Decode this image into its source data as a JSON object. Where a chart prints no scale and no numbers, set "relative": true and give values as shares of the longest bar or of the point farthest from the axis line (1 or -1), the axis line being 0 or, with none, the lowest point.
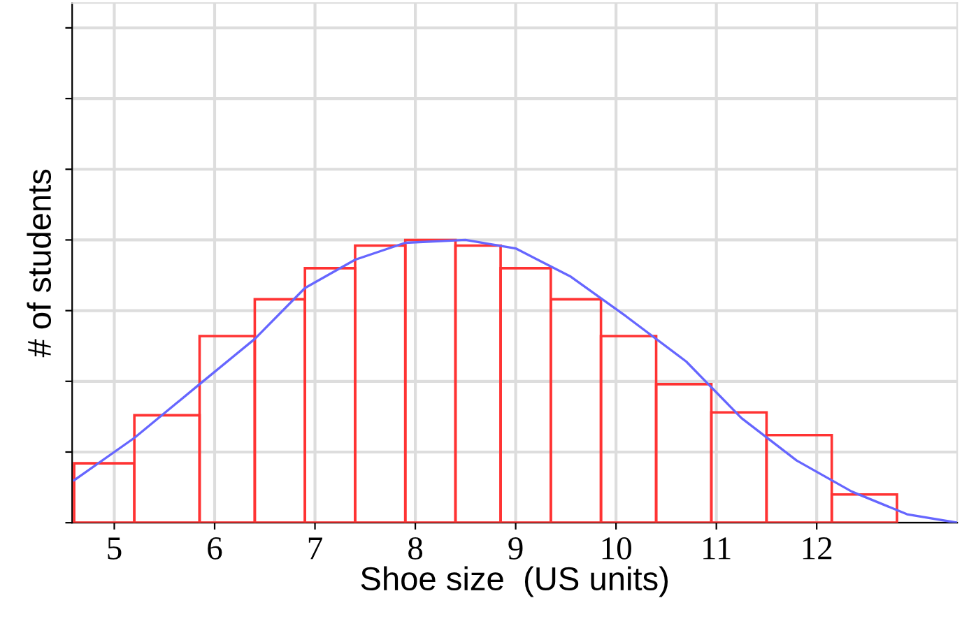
{
  "chart_data": {
    "type": "histogram",
    "xlabel": "Shoe size  (US units)",
    "ylabel": "# of students",
    "relative": true,
    "color": "#ff3333",
    "bins": [
      4.6,
      5.2,
      5.85,
      6.4,
      6.9,
      7.4,
      7.9,
      8.4,
      8.85,
      9.35,
      9.85,
      10.4,
      10.95,
      11.5,
      12.15,
      12.8
    ],
    "values": [
      0.21,
      0.38,
      0.66,
      0.79,
      0.9,
      0.98,
      1,
      0.98,
      0.9,
      0.79,
      0.66,
      0.49,
      0.39,
      0.31,
      0.1
    ],
    "series": [
      {
        "type": "line",
        "color": "#6666ff",
        "x": [
          4.6,
          5.2,
          5.85,
          6.4,
          6.9,
          7.4,
          7.9,
          8.5,
          9.0,
          9.55,
          10.1,
          10.7,
          11.25,
          11.8,
          12.35,
          12.9,
          13.4
        ],
        "values": [
          0.15,
          0.3,
          0.49,
          0.65,
          0.83,
          0.93,
          0.99,
          1,
          0.97,
          0.87,
          0.73,
          0.57,
          0.37,
          0.22,
          0.11,
          0.03,
          0
        ]
      }
    ],
    "xlim": [
      4.58,
      13.4
    ],
    "xticks": [
      5,
      6,
      7,
      8,
      9,
      10,
      11,
      12
    ],
    "grid": true,
    "legend": false
  }
}
